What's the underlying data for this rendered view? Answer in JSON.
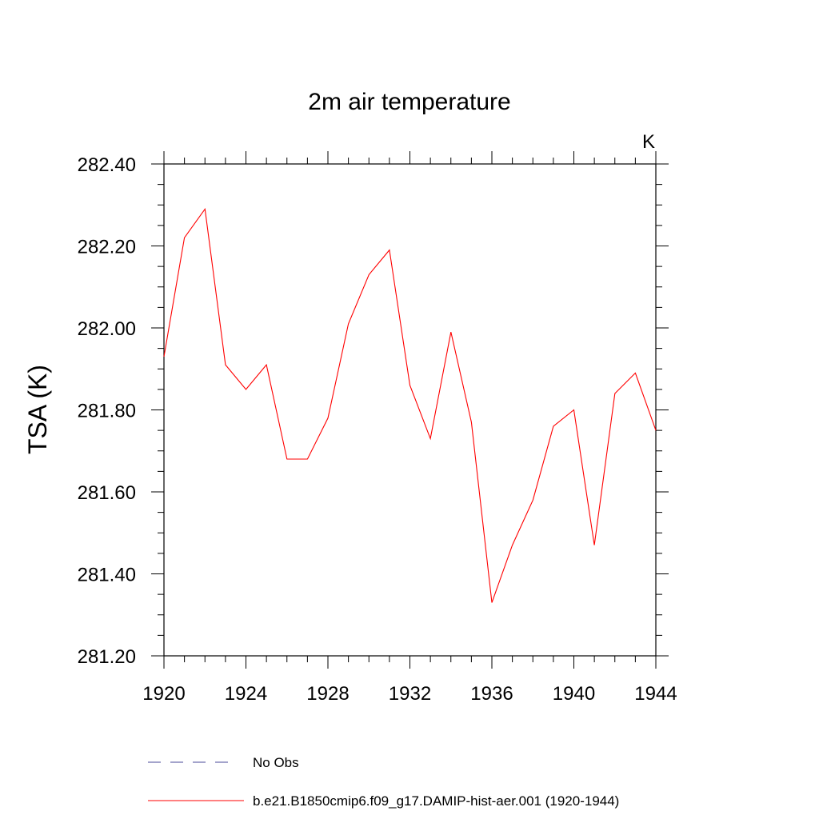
{
  "chart_data": {
    "type": "line",
    "title": "2m air temperature",
    "units_label": "K",
    "ylabel": "TSA  (K)",
    "xlabel": "",
    "xlim": [
      1920,
      1944
    ],
    "ylim": [
      281.2,
      282.4
    ],
    "xticks": [
      1920,
      1924,
      1928,
      1932,
      1936,
      1940,
      1944
    ],
    "yticks": [
      "281.20",
      "281.40",
      "281.60",
      "281.80",
      "282.00",
      "282.20",
      "282.40"
    ],
    "grid": false,
    "series": [
      {
        "name": "b.e21.B1850cmip6.f09_g17.DAMIP-hist-aer.001 (1920-1944)",
        "color": "#ff0000",
        "style": "solid",
        "x": [
          1920,
          1921,
          1922,
          1923,
          1924,
          1925,
          1926,
          1927,
          1928,
          1929,
          1930,
          1931,
          1932,
          1933,
          1934,
          1935,
          1936,
          1937,
          1938,
          1939,
          1940,
          1941,
          1942,
          1943,
          1944
        ],
        "values": [
          281.93,
          282.22,
          282.29,
          281.91,
          281.85,
          281.91,
          281.68,
          281.68,
          281.78,
          282.01,
          282.13,
          282.19,
          281.86,
          281.73,
          281.99,
          281.77,
          281.33,
          281.47,
          281.58,
          281.76,
          281.8,
          281.47,
          281.84,
          281.89,
          281.75
        ]
      }
    ],
    "legend": {
      "placement": "bottom",
      "entries": [
        {
          "label": "No Obs",
          "color": "#4a4a9a",
          "style": "dashed"
        },
        {
          "label": "b.e21.B1850cmip6.f09_g17.DAMIP-hist-aer.001 (1920-1944)",
          "color": "#ff0000",
          "style": "solid"
        }
      ]
    }
  }
}
